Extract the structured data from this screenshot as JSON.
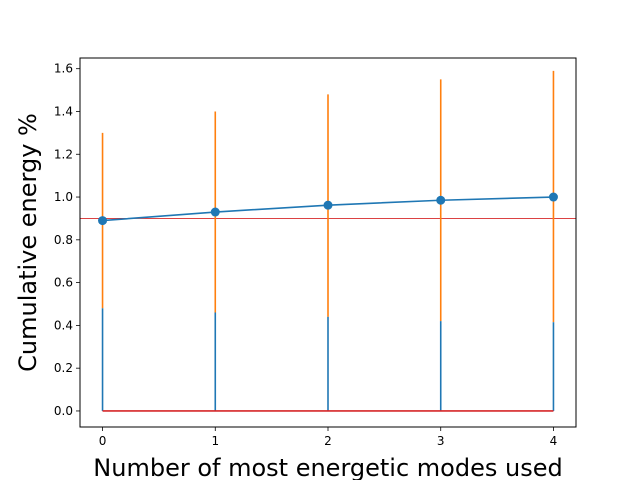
{
  "chart_data": {
    "type": "line",
    "title": "",
    "xlabel": "Number of most energetic modes used",
    "ylabel": "Cumulative energy %",
    "xlim": [
      -0.2,
      4.2
    ],
    "ylim": [
      -0.075,
      1.65
    ],
    "x_ticks": [
      "0",
      "1",
      "2",
      "3",
      "4"
    ],
    "y_ticks": [
      "0.0",
      "0.2",
      "0.4",
      "0.6",
      "0.8",
      "1.0",
      "1.2",
      "1.4",
      "1.6"
    ],
    "grid": false,
    "legend": "none",
    "x": [
      0,
      1,
      2,
      3,
      4
    ],
    "series": [
      {
        "values": [
          0.89,
          0.93,
          0.962,
          0.985,
          1.0
        ],
        "color": "#1f77b4",
        "marker": "circle"
      }
    ],
    "stems": {
      "blue_values": [
        0.48,
        0.46,
        0.44,
        0.42,
        0.415
      ],
      "orange_values": [
        1.3,
        1.4,
        1.48,
        1.55,
        1.59
      ],
      "blue_color": "#1f77b4",
      "orange_color": "#ff7f0e"
    },
    "baseline": {
      "value": 0.0,
      "color": "#d62728"
    },
    "threshold": {
      "value": 0.9,
      "color": "#d62728"
    }
  }
}
